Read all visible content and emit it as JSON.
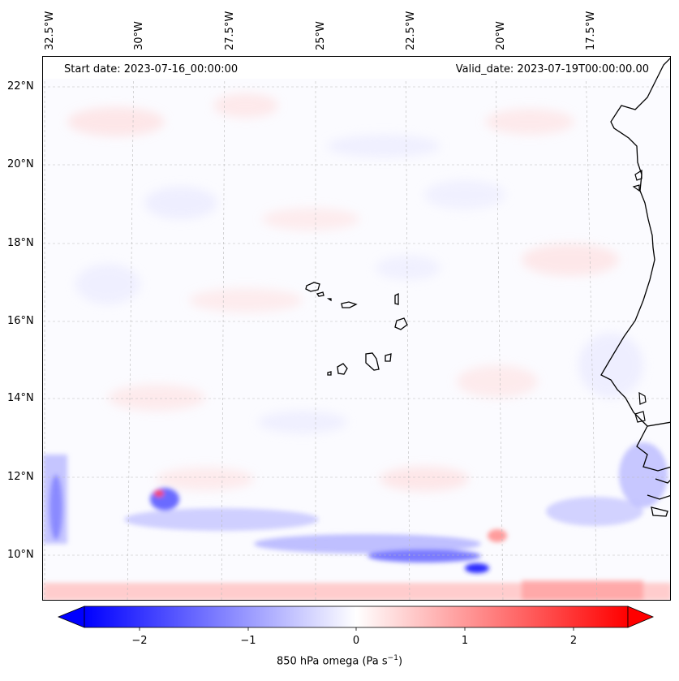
{
  "map": {
    "header_start": "Start date: 2023-07-16_00:00:00",
    "header_valid": "Valid_date: 2023-07-19T00:00:00.00",
    "longitude_labels": [
      "32.5°W",
      "30°W",
      "27.5°W",
      "25°W",
      "22.5°W",
      "20°W",
      "17.5°W"
    ],
    "latitude_labels": [
      "22°N",
      "20°N",
      "18°N",
      "16°N",
      "14°N",
      "12°N",
      "10°N"
    ],
    "features": [
      "Cape Verde islands",
      "West African coastline"
    ],
    "field": "850 hPa omega"
  },
  "colorbar": {
    "label_prefix": "850 hPa omega (Pa s",
    "label_exp": "−1",
    "label_suffix": ")",
    "ticks": [
      "−2",
      "−1",
      "0",
      "1",
      "2"
    ],
    "min": -2.7,
    "max": 2.7,
    "colors": {
      "negative": "#0000ff",
      "zero": "#ffffff",
      "positive": "#ff0000"
    }
  }
}
